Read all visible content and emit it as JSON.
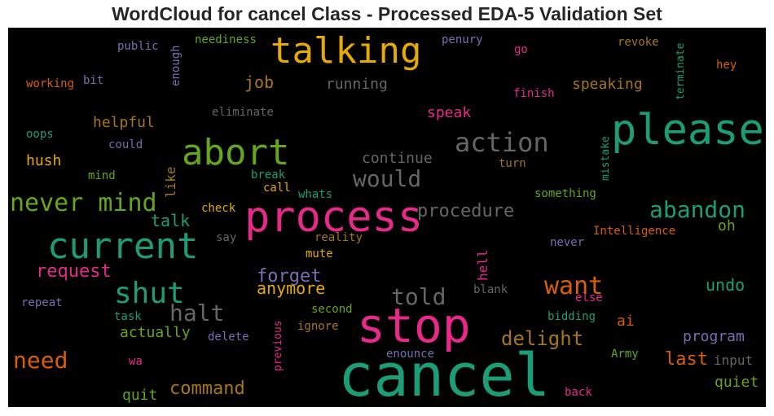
{
  "chart_data": {
    "type": "wordcloud",
    "title": "WordCloud for cancel Class - Processed EDA-5 Validation Set",
    "background": "#000000",
    "words": [
      {
        "text": "cancel",
        "color": "#1b9e77"
      },
      {
        "text": "stop",
        "color": "#e7298a"
      },
      {
        "text": "process",
        "color": "#e7298a"
      },
      {
        "text": "please",
        "color": "#1b9e77"
      },
      {
        "text": "current",
        "color": "#1b9e77"
      },
      {
        "text": "abort",
        "color": "#66a61e"
      },
      {
        "text": "talking",
        "color": "#e6ab02"
      },
      {
        "text": "shut",
        "color": "#1b9e77"
      },
      {
        "text": "action",
        "color": "#666666"
      },
      {
        "text": "never mind",
        "color": "#66a61e"
      },
      {
        "text": "need",
        "color": "#d95f02"
      },
      {
        "text": "want",
        "color": "#d95f02"
      },
      {
        "text": "abandon",
        "color": "#1b9e77"
      },
      {
        "text": "would",
        "color": "#666666"
      },
      {
        "text": "halt",
        "color": "#666666"
      },
      {
        "text": "told",
        "color": "#666666"
      },
      {
        "text": "delight",
        "color": "#a6761d"
      },
      {
        "text": "procedure",
        "color": "#666666"
      },
      {
        "text": "command",
        "color": "#a6761d"
      },
      {
        "text": "request",
        "color": "#e7298a"
      },
      {
        "text": "forget",
        "color": "#7570b3"
      },
      {
        "text": "anymore",
        "color": "#e6ab02"
      },
      {
        "text": "last",
        "color": "#d95f02"
      },
      {
        "text": "talk",
        "color": "#1b9e77"
      },
      {
        "text": "undo",
        "color": "#1b9e77"
      },
      {
        "text": "job",
        "color": "#a6761d"
      },
      {
        "text": "program",
        "color": "#7570b3"
      },
      {
        "text": "speaking",
        "color": "#a6761d"
      },
      {
        "text": "running",
        "color": "#666666"
      },
      {
        "text": "continue",
        "color": "#666666"
      },
      {
        "text": "helpful",
        "color": "#a6761d"
      },
      {
        "text": "actually",
        "color": "#66a61e"
      },
      {
        "text": "quiet",
        "color": "#66a61e"
      },
      {
        "text": "quit",
        "color": "#66a61e"
      },
      {
        "text": "speak",
        "color": "#e7298a"
      },
      {
        "text": "hush",
        "color": "#e6ab02"
      },
      {
        "text": "oh",
        "color": "#66a61e"
      },
      {
        "text": "ai",
        "color": "#d95f02"
      },
      {
        "text": "input",
        "color": "#666666"
      },
      {
        "text": "like",
        "color": "#a6761d"
      },
      {
        "text": "hell",
        "color": "#e7298a"
      },
      {
        "text": "neediness",
        "color": "#66a61e"
      },
      {
        "text": "public",
        "color": "#7570b3"
      },
      {
        "text": "enough",
        "color": "#7570b3"
      },
      {
        "text": "penury",
        "color": "#7570b3"
      },
      {
        "text": "revoke",
        "color": "#a6761d"
      },
      {
        "text": "terminate",
        "color": "#1b9e77"
      },
      {
        "text": "go",
        "color": "#e7298a"
      },
      {
        "text": "hey",
        "color": "#d95f02"
      },
      {
        "text": "working",
        "color": "#d95f02"
      },
      {
        "text": "bit",
        "color": "#7570b3"
      },
      {
        "text": "finish",
        "color": "#e7298a"
      },
      {
        "text": "eliminate",
        "color": "#666666"
      },
      {
        "text": "oops",
        "color": "#1b9e77"
      },
      {
        "text": "could",
        "color": "#7570b3"
      },
      {
        "text": "mistake",
        "color": "#1b9e77"
      },
      {
        "text": "turn",
        "color": "#a6761d"
      },
      {
        "text": "mind",
        "color": "#66a61e"
      },
      {
        "text": "break",
        "color": "#1b9e77"
      },
      {
        "text": "call",
        "color": "#e6ab02"
      },
      {
        "text": "whats",
        "color": "#1b9e77"
      },
      {
        "text": "something",
        "color": "#66a61e"
      },
      {
        "text": "check",
        "color": "#e6ab02"
      },
      {
        "text": "say",
        "color": "#666666"
      },
      {
        "text": "reality",
        "color": "#a6761d"
      },
      {
        "text": "Intelligence",
        "color": "#d95f02"
      },
      {
        "text": "never",
        "color": "#7570b3"
      },
      {
        "text": "mute",
        "color": "#e6ab02"
      },
      {
        "text": "blank",
        "color": "#666666"
      },
      {
        "text": "else",
        "color": "#e7298a"
      },
      {
        "text": "repeat",
        "color": "#7570b3"
      },
      {
        "text": "second",
        "color": "#66a61e"
      },
      {
        "text": "task",
        "color": "#1b9e77"
      },
      {
        "text": "bidding",
        "color": "#1b9e77"
      },
      {
        "text": "ignore",
        "color": "#a6761d"
      },
      {
        "text": "previous",
        "color": "#e7298a"
      },
      {
        "text": "delete",
        "color": "#7570b3"
      },
      {
        "text": "enounce",
        "color": "#7570b3"
      },
      {
        "text": "Army",
        "color": "#66a61e"
      },
      {
        "text": "wa",
        "color": "#e7298a"
      },
      {
        "text": "back",
        "color": "#e7298a"
      }
    ]
  }
}
